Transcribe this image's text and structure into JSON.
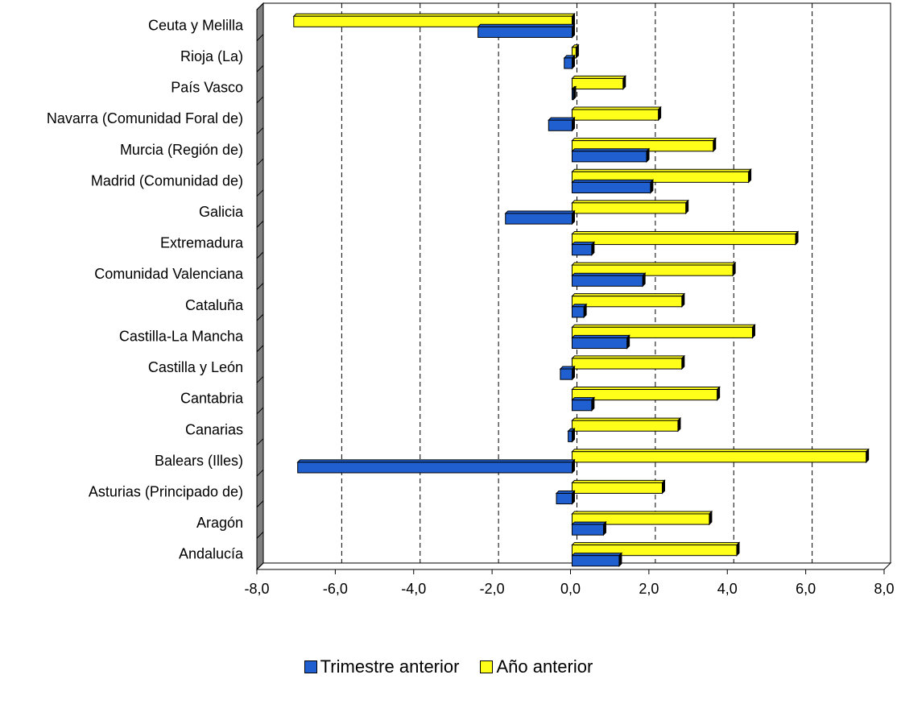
{
  "chart_data": {
    "type": "bar",
    "orientation": "horizontal",
    "categories": [
      "Ceuta y Melilla",
      "Rioja (La)",
      "País Vasco",
      "Navarra (Comunidad Foral de)",
      "Murcia (Región de)",
      "Madrid (Comunidad de)",
      "Galicia",
      "Extremadura",
      "Comunidad Valenciana",
      "Cataluña",
      "Castilla-La Mancha",
      "Castilla y León",
      "Cantabria",
      "Canarias",
      "Balears (Illes)",
      "Asturias (Principado de)",
      "Aragón",
      "Andalucía"
    ],
    "series": [
      {
        "name": "Trimestre anterior",
        "color": "#1f5fd0",
        "values": [
          -2.4,
          -0.2,
          0.0,
          -0.6,
          1.9,
          2.0,
          -1.7,
          0.5,
          1.8,
          0.3,
          1.4,
          -0.3,
          0.5,
          -0.1,
          -7.0,
          -0.4,
          0.8,
          1.2
        ]
      },
      {
        "name": "Año anterior",
        "color": "#ffff19",
        "values": [
          -7.1,
          0.1,
          1.3,
          2.2,
          3.6,
          4.5,
          2.9,
          5.7,
          4.1,
          2.8,
          4.6,
          2.8,
          3.7,
          2.7,
          7.5,
          2.3,
          3.5,
          4.2
        ]
      }
    ],
    "xlim": [
      -8,
      8
    ],
    "ticks": [
      -8,
      -6,
      -4,
      -2,
      0,
      2,
      4,
      6,
      8
    ],
    "tick_labels": [
      "-8,0",
      "-6,0",
      "-4,0",
      "-2,0",
      "0,0",
      "2,0",
      "4,0",
      "6,0",
      "8,0"
    ],
    "grid": "vertical dashed",
    "legend_position": "bottom",
    "title": "",
    "xlabel": "",
    "ylabel": ""
  },
  "legend": {
    "items": [
      {
        "label": "Trimestre anterior",
        "color": "#1f5fd0"
      },
      {
        "label": "Año anterior",
        "color": "#ffff19"
      }
    ]
  }
}
